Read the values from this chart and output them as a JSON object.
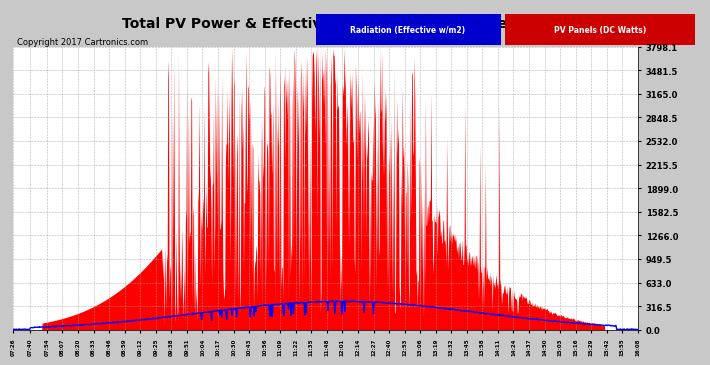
{
  "title": "Total PV Power & Effective Solar Radiation Fri Dec 15 16:09",
  "copyright": "Copyright 2017 Cartronics.com",
  "legend_labels": [
    "Radiation (Effective w/m2)",
    "PV Panels (DC Watts)"
  ],
  "bg_color": "#c8c8c8",
  "plot_bg_color": "#ffffff",
  "yticks": [
    0.0,
    316.5,
    633.0,
    949.5,
    1266.0,
    1582.5,
    1899.0,
    2215.5,
    2532.0,
    2848.5,
    3165.0,
    3481.5,
    3798.1
  ],
  "ymax": 3798.1,
  "ymin": 0.0,
  "xtick_labels": [
    "07:26",
    "07:40",
    "07:54",
    "08:07",
    "08:20",
    "08:33",
    "08:46",
    "08:59",
    "09:12",
    "09:25",
    "09:38",
    "09:51",
    "10:04",
    "10:17",
    "10:30",
    "10:43",
    "10:56",
    "11:09",
    "11:22",
    "11:35",
    "11:48",
    "12:01",
    "12:14",
    "12:27",
    "12:40",
    "12:53",
    "13:06",
    "13:19",
    "13:32",
    "13:45",
    "13:58",
    "14:11",
    "14:24",
    "14:37",
    "14:50",
    "15:03",
    "15:16",
    "15:29",
    "15:42",
    "15:55",
    "16:08"
  ],
  "pv_color": "#ff0000",
  "radiation_color": "#0000ff",
  "grid_color": "#a0a0a0",
  "title_fontsize": 10,
  "copyright_fontsize": 6,
  "ytick_fontsize": 6,
  "xtick_fontsize": 4
}
